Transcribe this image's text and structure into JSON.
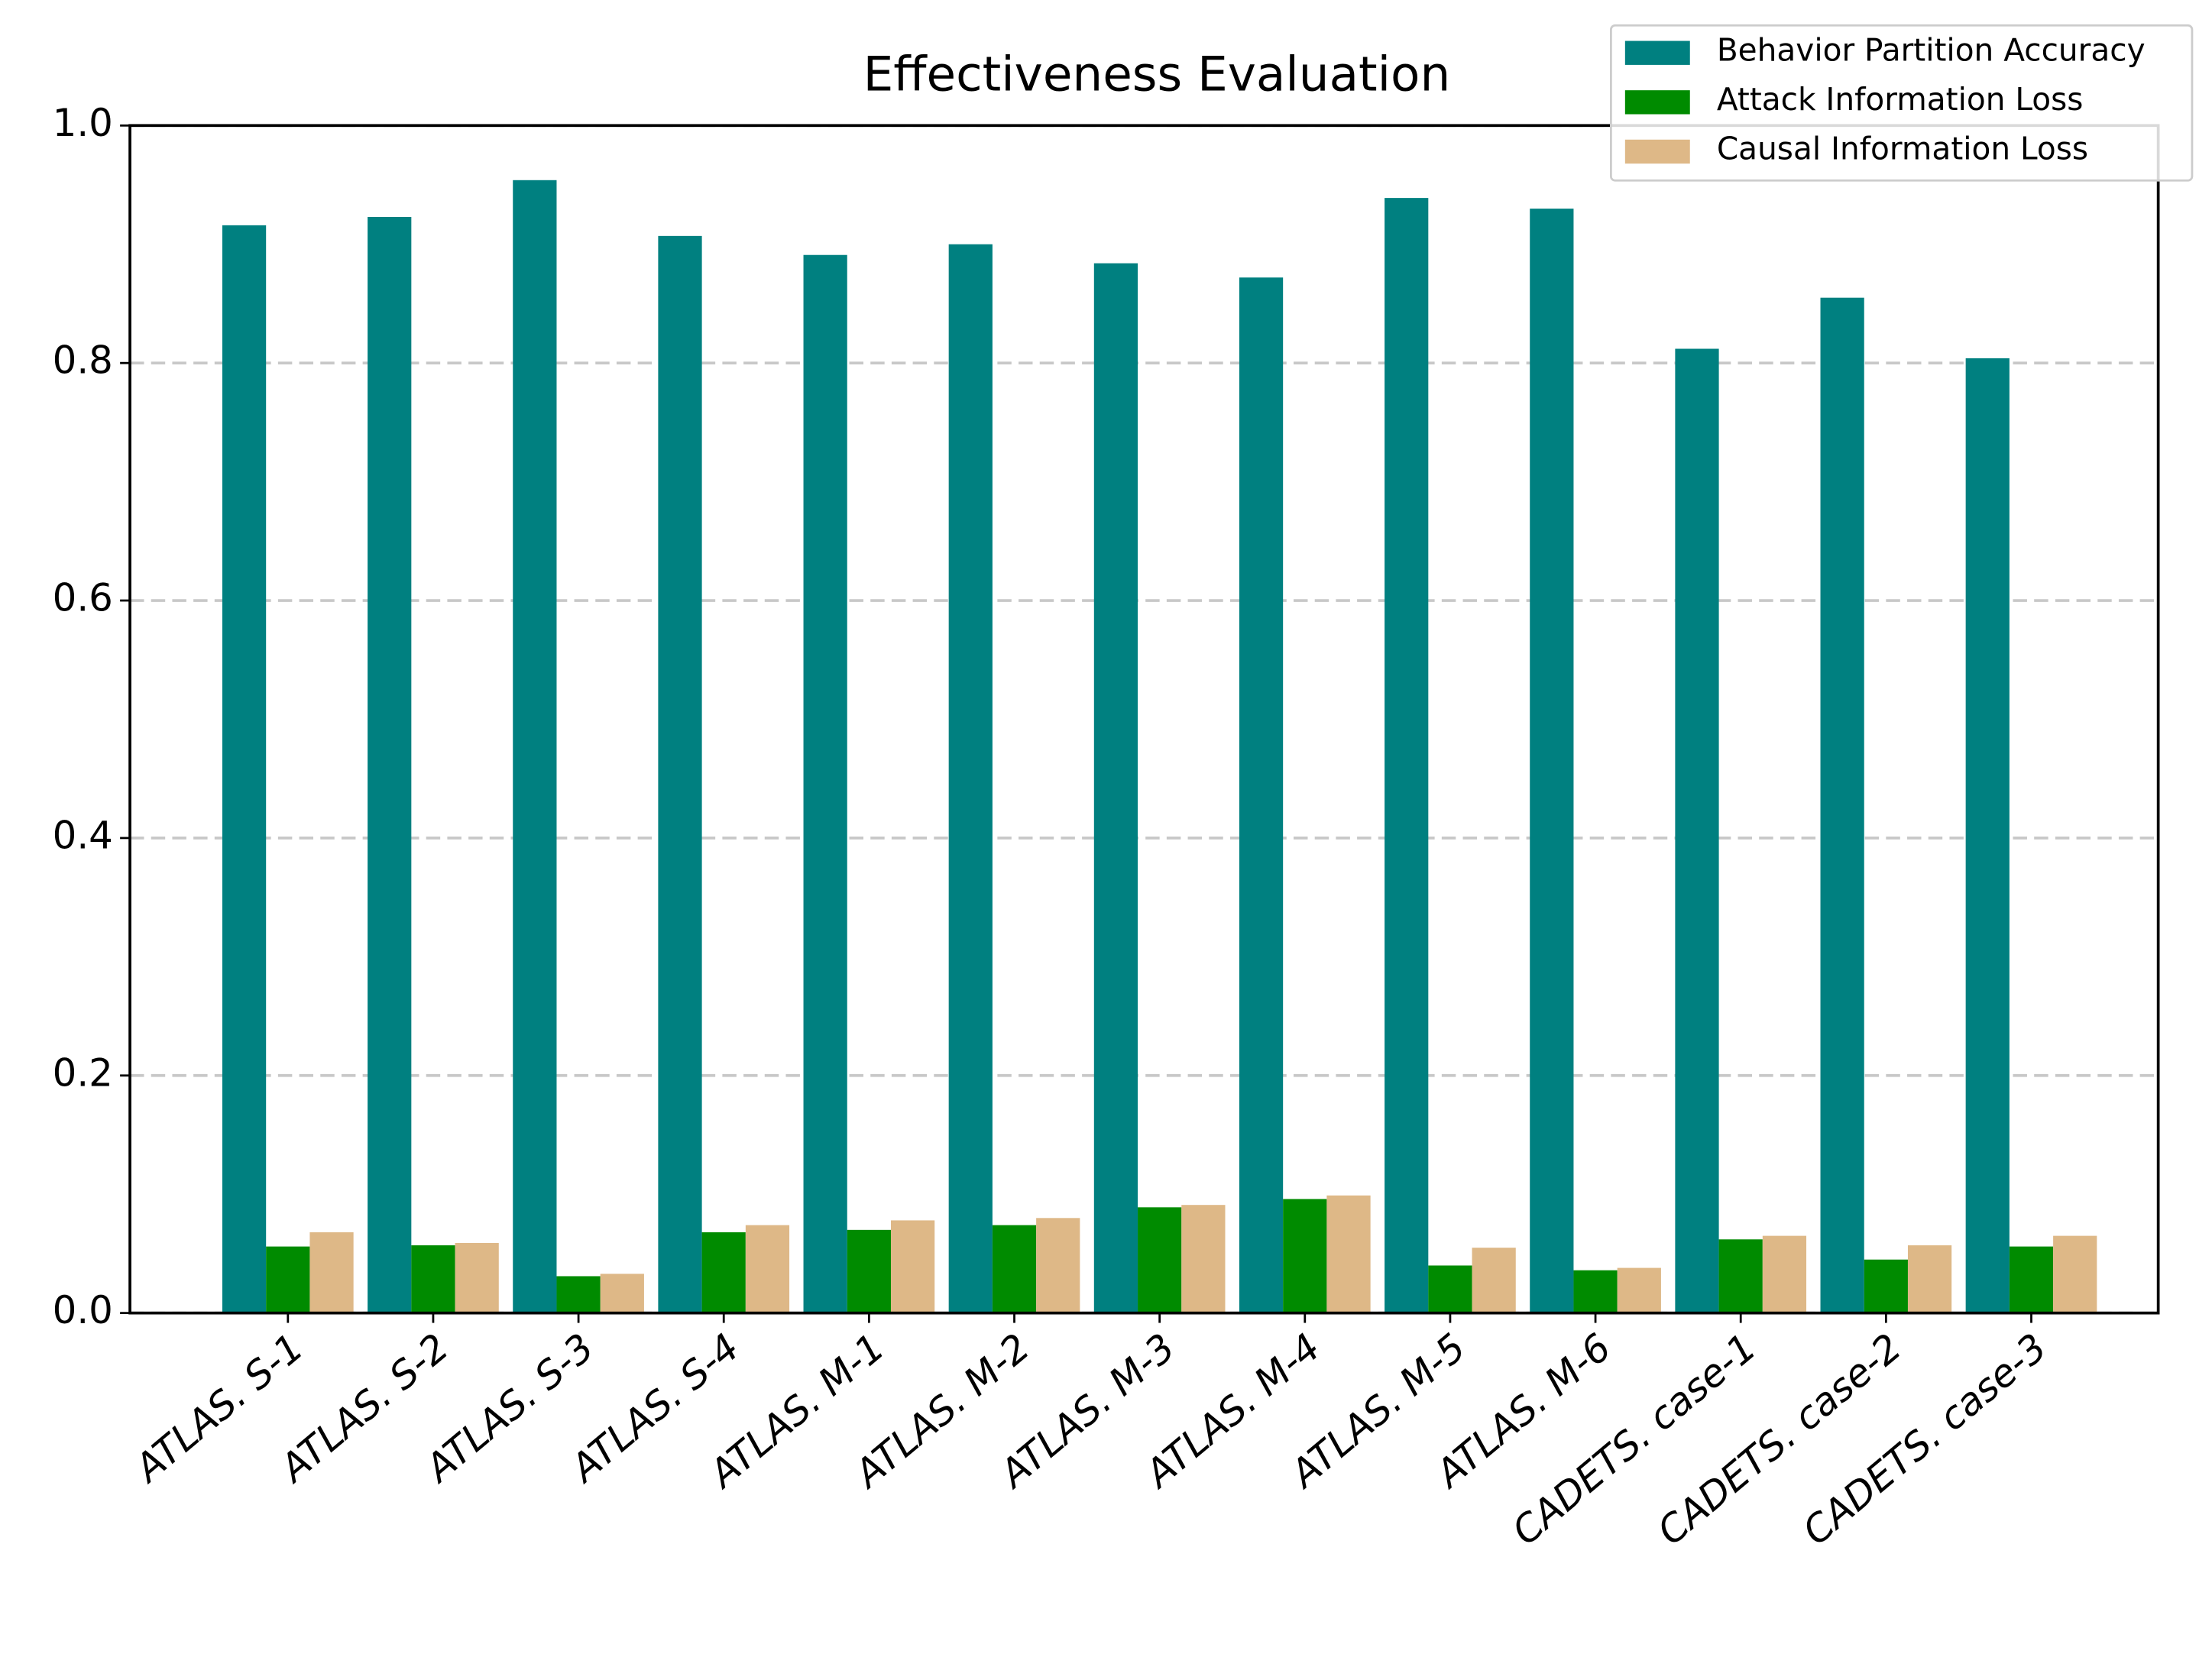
{
  "chart_data": {
    "type": "bar",
    "title": "Effectiveness Evaluation",
    "categories": [
      "ATLAS. S-1",
      "ATLAS. S-2",
      "ATLAS. S-3",
      "ATLAS. S-4",
      "ATLAS. M-1",
      "ATLAS. M-2",
      "ATLAS. M-3",
      "ATLAS. M-4",
      "ATLAS. M-5",
      "ATLAS. M-6",
      "CADETS. case-1",
      "CADETS. case-2",
      "CADETS. case-3"
    ],
    "series": [
      {
        "name": "Behavior Partition Accuracy",
        "color": "#008080",
        "values": [
          0.916,
          0.923,
          0.954,
          0.907,
          0.891,
          0.9,
          0.884,
          0.872,
          0.939,
          0.93,
          0.812,
          0.855,
          0.804
        ]
      },
      {
        "name": "Attack Information Loss",
        "color": "#008b00",
        "values": [
          0.056,
          0.057,
          0.031,
          0.068,
          0.07,
          0.074,
          0.089,
          0.096,
          0.04,
          0.036,
          0.062,
          0.045,
          0.056
        ]
      },
      {
        "name": "Causal Information Loss",
        "color": "#deb887",
        "values": [
          0.068,
          0.059,
          0.033,
          0.074,
          0.078,
          0.08,
          0.091,
          0.099,
          0.055,
          0.038,
          0.065,
          0.057,
          0.065
        ]
      }
    ],
    "ylim": [
      0,
      1
    ],
    "yticks": [
      {
        "value": 0,
        "label": "0.0"
      },
      {
        "value": 0.2,
        "label": "0.2"
      },
      {
        "value": 0.4,
        "label": "0.4"
      },
      {
        "value": 0.6,
        "label": "0.6"
      },
      {
        "value": 0.8,
        "label": "0.8"
      },
      {
        "value": 1,
        "label": "1.0"
      }
    ],
    "grid": true,
    "legend": "upper right"
  }
}
